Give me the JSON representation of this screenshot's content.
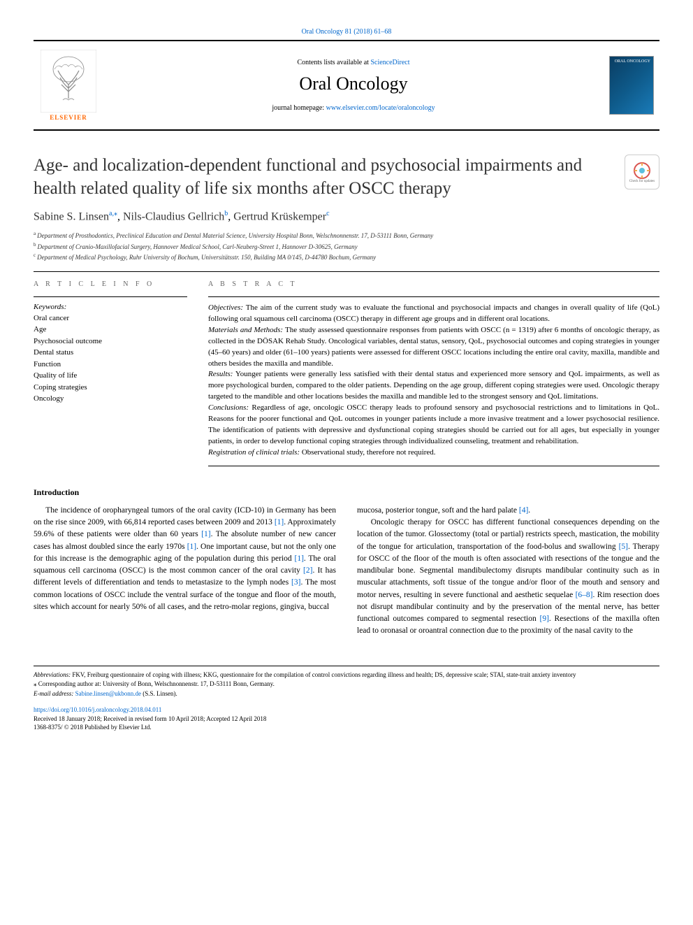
{
  "journal_ref": "Oral Oncology 81 (2018) 61–68",
  "header": {
    "contents_prefix": "Contents lists available at ",
    "contents_link": "ScienceDirect",
    "journal_name": "Oral Oncology",
    "homepage_prefix": "journal homepage: ",
    "homepage_url": "www.elsevier.com/locate/oraloncology",
    "elsevier_label": "ELSEVIER",
    "cover_label": "ORAL ONCOLOGY"
  },
  "crossmark": {
    "label": "Check for updates"
  },
  "article": {
    "title": "Age- and localization-dependent functional and psychosocial impairments and health related quality of life six months after OSCC therapy",
    "authors": [
      {
        "name": "Sabine S. Linsen",
        "sup": "a,",
        "corr": "⁎"
      },
      {
        "name": "Nils-Claudius Gellrich",
        "sup": "b",
        "corr": ""
      },
      {
        "name": "Gertrud Krüskemper",
        "sup": "c",
        "corr": ""
      }
    ],
    "affiliations": [
      {
        "sup": "a",
        "text": "Department of Prosthodontics, Preclinical Education and Dental Material Science, University Hospital Bonn, Welschnonnenstr. 17, D-53111 Bonn, Germany"
      },
      {
        "sup": "b",
        "text": "Department of Cranio-Maxillofacial Surgery, Hannover Medical School, Carl-Neuberg-Street 1, Hannover D-30625, Germany"
      },
      {
        "sup": "c",
        "text": "Department of Medical Psychology, Ruhr University of Bochum, Universitätsstr. 150, Building MA 0/145, D-44780 Bochum, Germany"
      }
    ]
  },
  "info": {
    "heading": "A R T I C L E  I N F O",
    "keywords_label": "Keywords:",
    "keywords": [
      "Oral cancer",
      "Age",
      "Psychosocial outcome",
      "Dental status",
      "Function",
      "Quality of life",
      "Coping strategies",
      "Oncology"
    ]
  },
  "abstract": {
    "heading": "A B S T R A C T",
    "sections": [
      {
        "label": "Objectives:",
        "text": " The aim of the current study was to evaluate the functional and psychosocial impacts and changes in overall quality of life (QoL) following oral squamous cell carcinoma (OSCC) therapy in different age groups and in different oral locations."
      },
      {
        "label": "Materials and Methods:",
        "text": " The study assessed questionnaire responses from patients with OSCC (n = 1319) after 6 months of oncologic therapy, as collected in the DÖSAK Rehab Study. Oncological variables, dental status, sensory, QoL, psychosocial outcomes and coping strategies in younger (45–60 years) and older (61–100 years) patients were assessed for different OSCC locations including the entire oral cavity, maxilla, mandible and others besides the maxilla and mandible."
      },
      {
        "label": "Results:",
        "text": " Younger patients were generally less satisfied with their dental status and experienced more sensory and QoL impairments, as well as more psychological burden, compared to the older patients. Depending on the age group, different coping strategies were used. Oncologic therapy targeted to the mandible and other locations besides the maxilla and mandible led to the strongest sensory and QoL limitations."
      },
      {
        "label": "Conclusions:",
        "text": " Regardless of age, oncologic OSCC therapy leads to profound sensory and psychosocial restrictions and to limitations in QoL. Reasons for the poorer functional and QoL outcomes in younger patients include a more invasive treatment and a lower psychosocial resilience. The identification of patients with depressive and dysfunctional coping strategies should be carried out for all ages, but especially in younger patients, in order to develop functional coping strategies through individualized counseling, treatment and rehabilitation."
      },
      {
        "label": "Registration of clinical trials:",
        "text": " Observational study, therefore not required."
      }
    ]
  },
  "introduction": {
    "heading": "Introduction",
    "col1_html": "The incidence of oropharyngeal tumors of the oral cavity (ICD-10) in Germany has been on the rise since 2009, with 66,814 reported cases between 2009 and 2013 <span class='cite'>[1]</span>. Approximately 59.6% of these patients were older than 60 years <span class='cite'>[1]</span>. The absolute number of new cancer cases has almost doubled since the early 1970s <span class='cite'>[1]</span>. One important cause, but not the only one for this increase is the demographic aging of the population during this period <span class='cite'>[1]</span>. The oral squamous cell carcinoma (OSCC) is the most common cancer of the oral cavity <span class='cite'>[2]</span>. It has different levels of differentiation and tends to metastasize to the lymph nodes <span class='cite'>[3]</span>. The most common locations of OSCC include the ventral surface of the tongue and floor of the mouth, sites which account for nearly 50% of all cases, and the retro-molar regions, gingiva, buccal",
    "col2_html": "mucosa, posterior tongue, soft and the hard palate <span class='cite'>[4]</span>.<br>&nbsp;&nbsp;&nbsp;&nbsp;Oncologic therapy for OSCC has different functional consequences depending on the location of the tumor. Glossectomy (total or partial) restricts speech, mastication, the mobility of the tongue for articulation, transportation of the food-bolus and swallowing <span class='cite'>[5]</span>. Therapy for OSCC of the floor of the mouth is often associated with resections of the tongue and the mandibular bone. Segmental mandibulectomy disrupts mandibular continuity such as in muscular attachments, soft tissue of the tongue and/or floor of the mouth and sensory and motor nerves, resulting in severe functional and aesthetic sequelae <span class='cite'>[6–8]</span>. Rim resection does not disrupt mandibular continuity and by the preservation of the mental nerve, has better functional outcomes compared to segmental resection <span class='cite'>[9]</span>. Resections of the maxilla often lead to oronasal or oroantral connection due to the proximity of the nasal cavity to the"
  },
  "footnotes": {
    "abbrev_label": "Abbreviations:",
    "abbrev_text": " FKV, Freiburg questionnaire of coping with illness; KKG, questionnaire for the compilation of control convictions regarding illness and health; DS, depressive scale; STAI, state-trait anxiety inventory",
    "corr_marker": "⁎",
    "corr_text": " Corresponding author at: University of Bonn, Welschnonnenstr. 17, D-53111 Bonn, Germany.",
    "email_label": "E-mail address: ",
    "email": "Sabine.linsen@ukbonn.de",
    "email_suffix": " (S.S. Linsen)."
  },
  "doi": {
    "url": "https://doi.org/10.1016/j.oraloncology.2018.04.011",
    "received": "Received 18 January 2018; Received in revised form 10 April 2018; Accepted 12 April 2018",
    "issn_copyright": "1368-8375/ © 2018 Published by Elsevier Ltd."
  },
  "colors": {
    "link": "#0066cc",
    "elsevier_orange": "#ff6600",
    "text": "#000000"
  }
}
